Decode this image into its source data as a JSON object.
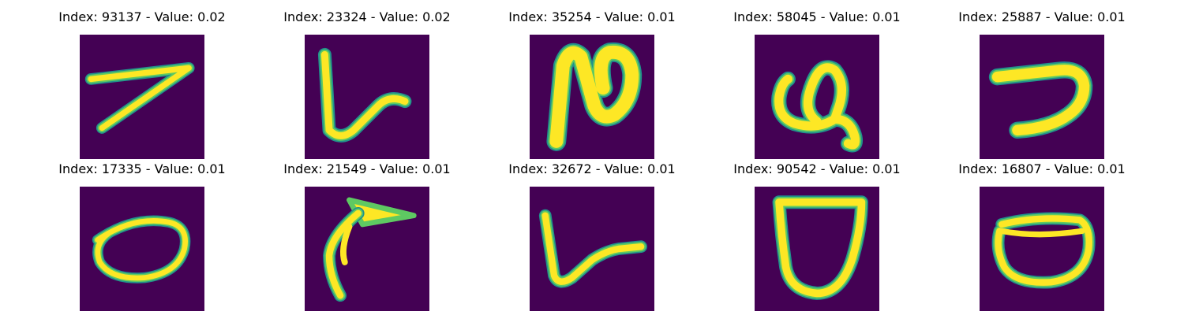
{
  "colors": {
    "background": "#440154",
    "stroke_edge": "#21918c",
    "stroke_mid": "#5ec962",
    "stroke_core": "#fde725"
  },
  "panels": [
    {
      "index": "93137",
      "value": "0.02",
      "title": "Index: 93137 - Value: 0.02",
      "glyph": "seven-like stroke"
    },
    {
      "index": "23324",
      "value": "0.02",
      "title": "Index: 23324 - Value: 0.02",
      "glyph": "L-like stroke"
    },
    {
      "index": "35254",
      "value": "0.01",
      "title": "Index: 35254 - Value: 0.01",
      "glyph": "N-like stroke"
    },
    {
      "index": "58045",
      "value": "0.01",
      "title": "Index: 58045 - Value: 0.01",
      "glyph": "looped glyph"
    },
    {
      "index": "25887",
      "value": "0.01",
      "title": "Index: 25887 - Value: 0.01",
      "glyph": "reversed-C stroke"
    },
    {
      "index": "17335",
      "value": "0.01",
      "title": "Index: 17335 - Value: 0.01",
      "glyph": "oval"
    },
    {
      "index": "21549",
      "value": "0.01",
      "title": "Index: 21549 - Value: 0.01",
      "glyph": "hook stroke"
    },
    {
      "index": "32672",
      "value": "0.01",
      "title": "Index: 32672 - Value: 0.01",
      "glyph": "L-like stroke"
    },
    {
      "index": "90542",
      "value": "0.01",
      "title": "Index: 90542 - Value: 0.01",
      "glyph": "U-shape"
    },
    {
      "index": "16807",
      "value": "0.01",
      "title": "Index: 16807 - Value: 0.01",
      "glyph": "rounded oval"
    }
  ]
}
